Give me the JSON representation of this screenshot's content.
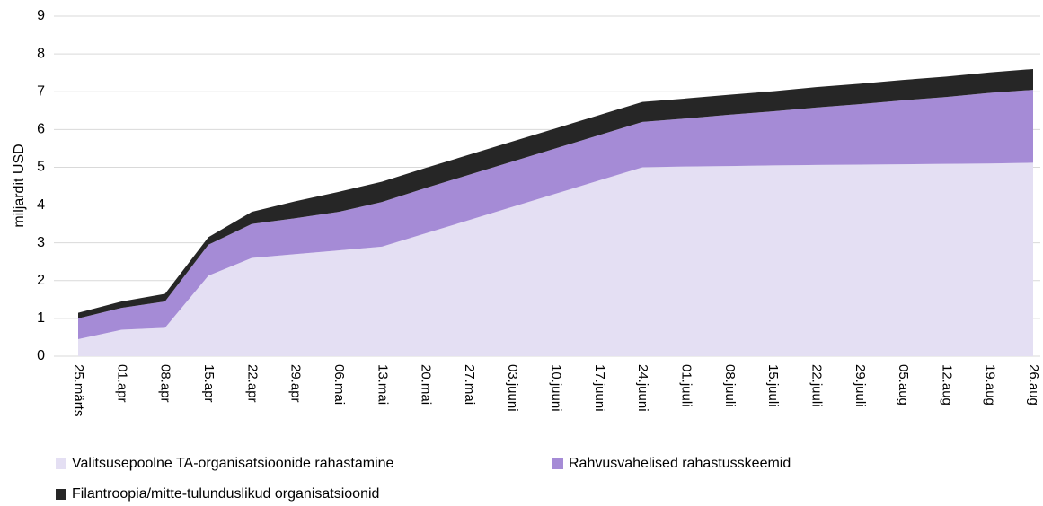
{
  "chart_data": {
    "type": "stacked_area",
    "y_label": "miljardit USD",
    "categories": [
      "25.märts",
      "01.apr",
      "08.apr",
      "15.apr",
      "22.apr",
      "29.apr",
      "06.mai",
      "13.mai",
      "20.mai",
      "27.mai",
      "03.juuni",
      "10.juuni",
      "17.juuni",
      "24.juuni",
      "01.juuli",
      "08.juuli",
      "15.juuli",
      "22.juuli",
      "29.juuli",
      "05.aug",
      "12.aug",
      "19.aug",
      "26.aug"
    ],
    "series": [
      {
        "name": "Valitsusepoolne TA-organisatsioonide rahastamine",
        "color": "#e4dff3",
        "values": [
          0.45,
          0.7,
          0.75,
          2.13,
          2.6,
          2.7,
          2.8,
          2.9,
          3.25,
          3.6,
          3.95,
          4.3,
          4.65,
          5.0,
          5.02,
          5.03,
          5.05,
          5.06,
          5.07,
          5.08,
          5.09,
          5.1,
          5.12
        ]
      },
      {
        "name": "Rahvusvahelised rahastusskeemid",
        "color": "#a58bd6",
        "values": [
          0.55,
          0.58,
          0.7,
          0.82,
          0.9,
          0.95,
          1.02,
          1.18,
          1.2,
          1.2,
          1.2,
          1.2,
          1.2,
          1.2,
          1.27,
          1.36,
          1.43,
          1.52,
          1.6,
          1.69,
          1.77,
          1.87,
          1.93
        ]
      },
      {
        "name": "Filantroopia/mitte-tulunduslikud organisatsioonid",
        "color": "#262626",
        "values": [
          0.15,
          0.17,
          0.2,
          0.2,
          0.32,
          0.45,
          0.53,
          0.54,
          0.53,
          0.53,
          0.53,
          0.53,
          0.53,
          0.53,
          0.53,
          0.53,
          0.53,
          0.54,
          0.54,
          0.54,
          0.54,
          0.54,
          0.55
        ]
      }
    ],
    "ylim": [
      0,
      9
    ],
    "yticks": [
      0,
      1,
      2,
      3,
      4,
      5,
      6,
      7,
      8,
      9
    ],
    "grid": true
  }
}
